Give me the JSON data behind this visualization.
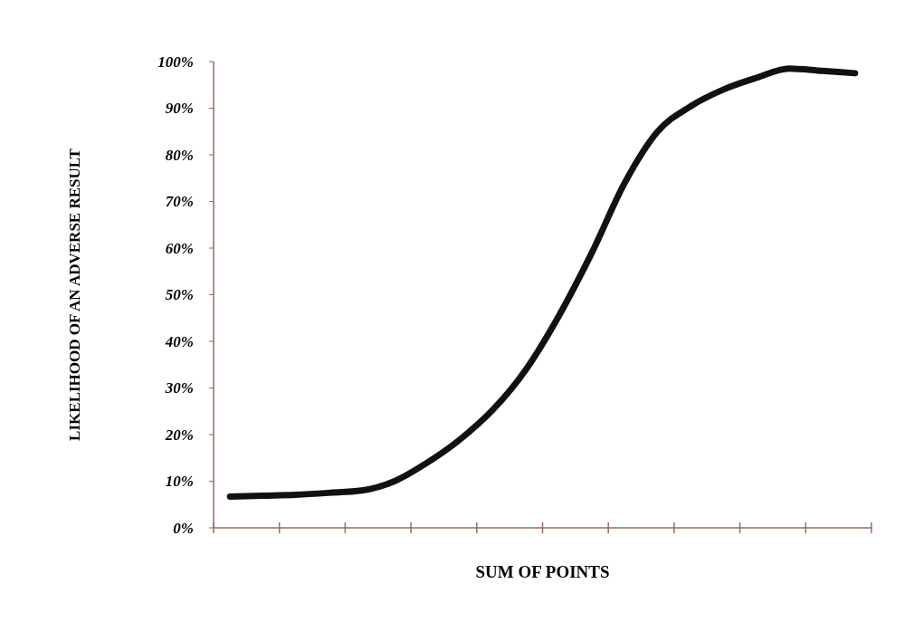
{
  "chart_data": {
    "type": "line",
    "xlabel": "SUM OF POINTS",
    "ylabel": "LIKELIHOOD OF AN ADVERSE RESULT",
    "categories": [
      null,
      null,
      null,
      null,
      null,
      null,
      null,
      null,
      null,
      null,
      null,
      null,
      null,
      null,
      null,
      null,
      null,
      null,
      null,
      null
    ],
    "series": [
      {
        "color": "#111111",
        "values": [
          6.7,
          6.9,
          7.1,
          7.5,
          8,
          10,
          14,
          19,
          25.4,
          34,
          45.5,
          59,
          74,
          85,
          90.4,
          94,
          96.5,
          98.5,
          98,
          97.5
        ]
      }
    ],
    "ylim": [
      0,
      100
    ],
    "yticks": [
      {
        "value": 0,
        "label": "0%"
      },
      {
        "value": 10,
        "label": "10%"
      },
      {
        "value": 20,
        "label": "20%"
      },
      {
        "value": 30,
        "label": "30%"
      },
      {
        "value": 40,
        "label": "40%"
      },
      {
        "value": 50,
        "label": "50%"
      },
      {
        "value": 60,
        "label": "60%"
      },
      {
        "value": 70,
        "label": "70%"
      },
      {
        "value": 80,
        "label": "80%"
      },
      {
        "value": 90,
        "label": "90%"
      },
      {
        "value": 100,
        "label": "100%"
      }
    ],
    "grid": false,
    "marker": "none",
    "line_style": "solid"
  }
}
